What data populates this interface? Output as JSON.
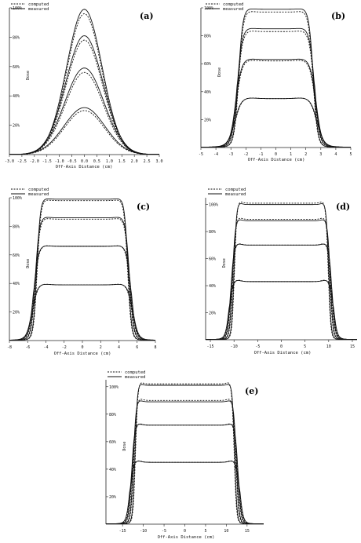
{
  "legend": {
    "computed": "computed",
    "measured": "measured"
  },
  "y_axis_label": "Dose",
  "x_axis_label": "Off-Axis Distance (cm)",
  "colors": {
    "line": "#111111",
    "axis": "#222222"
  },
  "chart_data": [
    {
      "type": "line",
      "panel_label": "(a)",
      "xlabel": "Off-Axis Distance (cm)",
      "ylabel": "Dose",
      "xlim": [
        -3.0,
        3.0
      ],
      "ylim": [
        0,
        100
      ],
      "x_ticks": [
        -3.0,
        -2.5,
        -2.0,
        -1.5,
        -1.0,
        -0.5,
        0.0,
        0.5,
        1.0,
        1.5,
        2.0,
        2.5,
        3.0
      ],
      "x_tick_labels": [
        "-3.0",
        "-2.5",
        "-2.0",
        "-1.5",
        "-1.0",
        "-0.5",
        "0.0",
        "0.5",
        "1.0",
        "1.5",
        "2.0",
        "2.5",
        "3.0"
      ],
      "y_ticks": [
        20,
        40,
        60,
        80,
        100
      ],
      "y_tick_labels": [
        "20%",
        "40%",
        "60%",
        "80%",
        "100%"
      ],
      "field_half_width_cm": 0.6,
      "penumbra_cm": 0.35,
      "plateau_levels": [
        99,
        81,
        59,
        32
      ],
      "computed_levels": [
        96,
        78,
        56,
        30
      ],
      "series": [
        {
          "name": "computed"
        },
        {
          "name": "measured"
        }
      ]
    },
    {
      "type": "line",
      "panel_label": "(b)",
      "xlabel": "Off-Axis Distance (cm)",
      "ylabel": "Dose",
      "xlim": [
        -5,
        5
      ],
      "ylim": [
        0,
        100
      ],
      "x_ticks": [
        -5,
        -4,
        -3,
        -2,
        -1,
        0,
        1,
        2,
        3,
        4,
        5
      ],
      "x_tick_labels": [
        "-5",
        "-4",
        "-3",
        "-2",
        "-1",
        "0",
        "1",
        "2",
        "3",
        "4",
        "5"
      ],
      "y_ticks": [
        20,
        40,
        60,
        80,
        100
      ],
      "y_tick_labels": [
        "20%",
        "40%",
        "60%",
        "80%",
        "100%"
      ],
      "field_half_width_cm": 2.5,
      "penumbra_cm": 0.32,
      "plateau_levels": [
        99,
        85,
        63,
        35
      ],
      "computed_levels": [
        97,
        83,
        62,
        35
      ],
      "series": [
        {
          "name": "computed"
        },
        {
          "name": "measured"
        }
      ]
    },
    {
      "type": "line",
      "panel_label": "(c)",
      "xlabel": "Off-Axis Distance (cm)",
      "ylabel": "Dose",
      "xlim": [
        -8,
        8
      ],
      "ylim": [
        0,
        100
      ],
      "x_ticks": [
        -8,
        -6,
        -4,
        -2,
        0,
        2,
        4,
        6,
        8
      ],
      "x_tick_labels": [
        "-8",
        "-6",
        "-4",
        "-2",
        "0",
        "2",
        "4",
        "6",
        "8"
      ],
      "y_ticks": [
        20,
        40,
        60,
        80,
        100
      ],
      "y_tick_labels": [
        "20%",
        "40%",
        "60%",
        "80%",
        "100%"
      ],
      "field_half_width_cm": 5.0,
      "penumbra_cm": 0.42,
      "plateau_levels": [
        99,
        86,
        66,
        39
      ],
      "computed_levels": [
        98,
        85,
        66,
        39
      ],
      "series": [
        {
          "name": "computed"
        },
        {
          "name": "measured"
        }
      ]
    },
    {
      "type": "line",
      "panel_label": "(d)",
      "xlabel": "Off-Axis Distance (cm)",
      "ylabel": "Dose",
      "xlim": [
        -16,
        16
      ],
      "ylim": [
        0,
        105
      ],
      "x_ticks": [
        -15,
        -10,
        -5,
        0,
        5,
        10,
        15
      ],
      "x_tick_labels": [
        "-15",
        "-10",
        "-5",
        "0",
        "5",
        "10",
        "15"
      ],
      "y_ticks": [
        20,
        40,
        60,
        80,
        100
      ],
      "y_tick_labels": [
        "20%",
        "40%",
        "60%",
        "80%",
        "100%"
      ],
      "field_half_width_cm": 10.0,
      "penumbra_cm": 0.55,
      "plateau_levels": [
        100,
        88,
        70,
        43
      ],
      "computed_levels": [
        101,
        89,
        70,
        43
      ],
      "series": [
        {
          "name": "computed"
        },
        {
          "name": "measured"
        }
      ]
    },
    {
      "type": "line",
      "panel_label": "(e)",
      "xlabel": "Off-Axis Distance (cm)",
      "ylabel": "Dose",
      "xlim": [
        -19,
        19
      ],
      "ylim": [
        0,
        105
      ],
      "x_ticks": [
        -15,
        -10,
        -5,
        0,
        5,
        10,
        15
      ],
      "x_tick_labels": [
        "-15",
        "-10",
        "-5",
        "0",
        "5",
        "10",
        "15"
      ],
      "y_ticks": [
        20,
        40,
        60,
        80,
        100
      ],
      "y_tick_labels": [
        "20%",
        "40%",
        "60%",
        "80%",
        "100%"
      ],
      "field_half_width_cm": 12.0,
      "penumbra_cm": 0.6,
      "plateau_levels": [
        101,
        89,
        72,
        45
      ],
      "computed_levels": [
        102,
        90,
        72,
        45
      ],
      "series": [
        {
          "name": "computed"
        },
        {
          "name": "measured"
        }
      ]
    }
  ]
}
